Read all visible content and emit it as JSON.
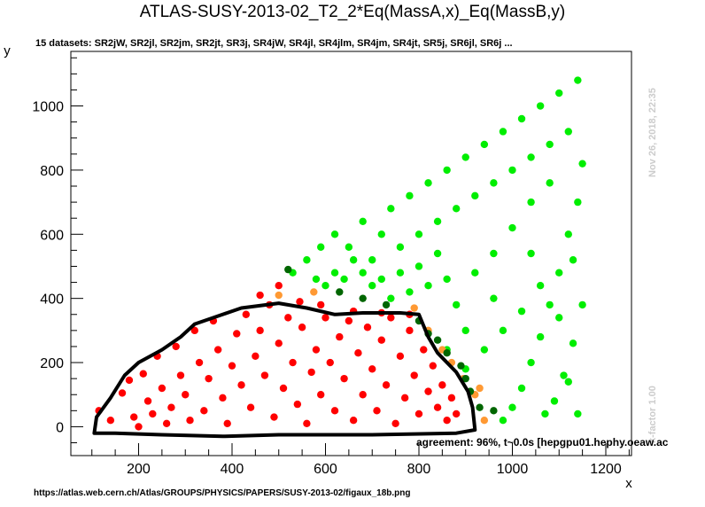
{
  "chart_data": {
    "type": "scatter",
    "title": "ATLAS-SUSY-2013-02_T2_2*Eq(MassA,x)_Eq(MassB,y)",
    "subtitle": "15 datasets: SR2jW, SR2jl, SR2jm, SR2jt, SR3j, SR4jW, SR4jl, SR4jlm, SR4jm, SR4jt, SR5j, SR6jl, SR6j ...",
    "xlabel": "x",
    "ylabel": "y",
    "xlim": [
      55,
      1255
    ],
    "ylim": [
      -90,
      1170
    ],
    "x_ticks": [
      200,
      400,
      600,
      800,
      1000,
      1200
    ],
    "y_ticks": [
      0,
      200,
      400,
      600,
      800,
      1000
    ],
    "timestamp": "Nov 26, 2018, 22:35",
    "kfactor": "k-factor 1.00",
    "agreement": "agreement: 96%, t~0.0s [hepgpu01.hephy.oeaw.ac",
    "source_url": "https://atlas.web.cern.ch/Atlas/GROUPS/PHYSICS/PAPERS/SUSY-2013-02/figaux_18b.png",
    "colors": {
      "excluded": "#ff0000",
      "allowed": "#00ee00",
      "excluded_border": "#ff9933",
      "allowed_border": "#006600",
      "contour": "#000000"
    },
    "series": [
      {
        "category": "excluded",
        "points": [
          [
            115,
            50
          ],
          [
            140,
            20
          ],
          [
            165,
            105
          ],
          [
            180,
            145
          ],
          [
            190,
            30
          ],
          [
            200,
            0
          ],
          [
            210,
            165
          ],
          [
            220,
            80
          ],
          [
            230,
            40
          ],
          [
            240,
            220
          ],
          [
            250,
            120
          ],
          [
            260,
            10
          ],
          [
            270,
            60
          ],
          [
            280,
            250
          ],
          [
            290,
            160
          ],
          [
            300,
            100
          ],
          [
            310,
            20
          ],
          [
            320,
            300
          ],
          [
            330,
            200
          ],
          [
            340,
            50
          ],
          [
            350,
            150
          ],
          [
            360,
            330
          ],
          [
            370,
            240
          ],
          [
            380,
            90
          ],
          [
            390,
            10
          ],
          [
            400,
            190
          ],
          [
            410,
            290
          ],
          [
            420,
            130
          ],
          [
            430,
            350
          ],
          [
            440,
            60
          ],
          [
            450,
            220
          ],
          [
            460,
            300
          ],
          [
            470,
            160
          ],
          [
            480,
            380
          ],
          [
            490,
            30
          ],
          [
            500,
            260
          ],
          [
            510,
            120
          ],
          [
            520,
            340
          ],
          [
            530,
            200
          ],
          [
            540,
            70
          ],
          [
            550,
            310
          ],
          [
            560,
            10
          ],
          [
            570,
            170
          ],
          [
            580,
            240
          ],
          [
            590,
            100
          ],
          [
            600,
            340
          ],
          [
            610,
            200
          ],
          [
            620,
            50
          ],
          [
            630,
            280
          ],
          [
            640,
            150
          ],
          [
            650,
            330
          ],
          [
            660,
            20
          ],
          [
            670,
            230
          ],
          [
            680,
            100
          ],
          [
            690,
            310
          ],
          [
            700,
            180
          ],
          [
            710,
            50
          ],
          [
            720,
            270
          ],
          [
            730,
            130
          ],
          [
            740,
            340
          ],
          [
            750,
            10
          ],
          [
            760,
            220
          ],
          [
            770,
            90
          ],
          [
            780,
            300
          ],
          [
            790,
            160
          ],
          [
            800,
            40
          ],
          [
            810,
            240
          ],
          [
            820,
            110
          ],
          [
            830,
            190
          ],
          [
            840,
            60
          ],
          [
            850,
            130
          ],
          [
            860,
            20
          ],
          [
            870,
            90
          ],
          [
            880,
            40
          ],
          [
            460,
            410
          ],
          [
            500,
            440
          ],
          [
            545,
            390
          ],
          [
            590,
            380
          ],
          [
            660,
            360
          ],
          [
            720,
            355
          ],
          [
            780,
            350
          ]
        ]
      },
      {
        "category": "allowed",
        "points": [
          [
            530,
            480
          ],
          [
            560,
            520
          ],
          [
            590,
            560
          ],
          [
            620,
            600
          ],
          [
            650,
            560
          ],
          [
            680,
            640
          ],
          [
            700,
            520
          ],
          [
            720,
            600
          ],
          [
            740,
            680
          ],
          [
            760,
            560
          ],
          [
            780,
            720
          ],
          [
            800,
            600
          ],
          [
            820,
            760
          ],
          [
            840,
            640
          ],
          [
            860,
            800
          ],
          [
            880,
            680
          ],
          [
            900,
            840
          ],
          [
            920,
            720
          ],
          [
            940,
            880
          ],
          [
            960,
            760
          ],
          [
            980,
            920
          ],
          [
            1000,
            800
          ],
          [
            1020,
            960
          ],
          [
            1040,
            840
          ],
          [
            1060,
            1000
          ],
          [
            1080,
            880
          ],
          [
            1100,
            1040
          ],
          [
            1120,
            920
          ],
          [
            1140,
            1080
          ],
          [
            1150,
            820
          ],
          [
            1140,
            700
          ],
          [
            1120,
            600
          ],
          [
            1100,
            480
          ],
          [
            1080,
            380
          ],
          [
            1060,
            280
          ],
          [
            1040,
            200
          ],
          [
            1020,
            120
          ],
          [
            1000,
            60
          ],
          [
            980,
            20
          ],
          [
            1130,
            260
          ],
          [
            1110,
            160
          ],
          [
            1090,
            80
          ],
          [
            1070,
            40
          ],
          [
            1130,
            520
          ],
          [
            1100,
            340
          ],
          [
            1060,
            440
          ],
          [
            1020,
            360
          ],
          [
            980,
            300
          ],
          [
            940,
            240
          ],
          [
            900,
            180
          ],
          [
            880,
            380
          ],
          [
            920,
            480
          ],
          [
            960,
            540
          ],
          [
            1000,
            620
          ],
          [
            1040,
            700
          ],
          [
            1080,
            760
          ],
          [
            860,
            460
          ],
          [
            840,
            540
          ],
          [
            820,
            440
          ],
          [
            800,
            500
          ],
          [
            780,
            420
          ],
          [
            760,
            480
          ],
          [
            740,
            400
          ],
          [
            720,
            460
          ],
          [
            700,
            440
          ],
          [
            680,
            480
          ],
          [
            660,
            520
          ],
          [
            640,
            460
          ],
          [
            620,
            480
          ],
          [
            600,
            440
          ],
          [
            580,
            460
          ],
          [
            1140,
            40
          ],
          [
            1120,
            140
          ],
          [
            1150,
            380
          ],
          [
            1040,
            540
          ],
          [
            960,
            400
          ],
          [
            900,
            300
          ],
          [
            860,
            240
          ]
        ]
      },
      {
        "category": "excluded_border",
        "points": [
          [
            500,
            410
          ],
          [
            575,
            420
          ],
          [
            790,
            370
          ],
          [
            820,
            300
          ],
          [
            850,
            240
          ],
          [
            870,
            200
          ],
          [
            895,
            150
          ],
          [
            920,
            100
          ],
          [
            940,
            20
          ],
          [
            930,
            120
          ]
        ]
      },
      {
        "category": "allowed_border",
        "points": [
          [
            520,
            490
          ],
          [
            630,
            420
          ],
          [
            680,
            400
          ],
          [
            730,
            380
          ],
          [
            800,
            330
          ],
          [
            820,
            290
          ],
          [
            840,
            270
          ],
          [
            860,
            230
          ],
          [
            890,
            190
          ],
          [
            900,
            150
          ],
          [
            910,
            110
          ],
          [
            930,
            60
          ],
          [
            960,
            50
          ]
        ]
      }
    ],
    "contour": [
      [
        105,
        -20
      ],
      [
        110,
        30
      ],
      [
        140,
        90
      ],
      [
        170,
        160
      ],
      [
        200,
        200
      ],
      [
        250,
        240
      ],
      [
        290,
        280
      ],
      [
        320,
        320
      ],
      [
        360,
        340
      ],
      [
        420,
        370
      ],
      [
        500,
        385
      ],
      [
        560,
        370
      ],
      [
        620,
        350
      ],
      [
        680,
        355
      ],
      [
        760,
        355
      ],
      [
        800,
        350
      ],
      [
        820,
        280
      ],
      [
        840,
        230
      ],
      [
        880,
        170
      ],
      [
        905,
        110
      ],
      [
        915,
        60
      ],
      [
        920,
        -10
      ],
      [
        880,
        -20
      ],
      [
        700,
        -25
      ],
      [
        500,
        -25
      ],
      [
        380,
        -30
      ],
      [
        250,
        -25
      ],
      [
        150,
        -20
      ],
      [
        105,
        -20
      ]
    ]
  }
}
